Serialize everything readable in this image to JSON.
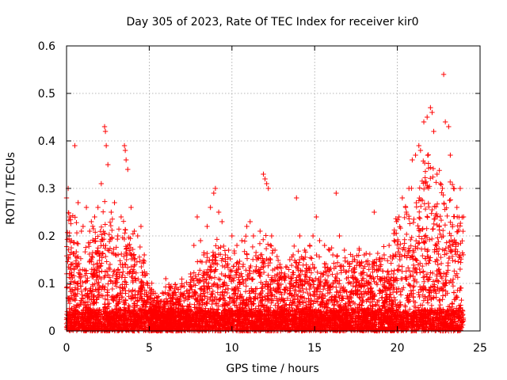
{
  "chart_data": {
    "type": "scatter",
    "title": "Day 305 of 2023, Rate Of TEC Index for receiver kir0",
    "xlabel": "GPS time / hours",
    "ylabel": "ROTI / TECUs",
    "xlim": [
      0,
      25
    ],
    "ylim": [
      0,
      0.6
    ],
    "x_ticks": [
      0,
      5,
      10,
      15,
      20,
      25
    ],
    "y_ticks": [
      0,
      0.1,
      0.2,
      0.3,
      0.4,
      0.5,
      0.6
    ],
    "x_tick_labels": [
      "0",
      "5",
      "10",
      "15",
      "20",
      "25"
    ],
    "y_tick_labels": [
      "0",
      "0.1",
      "0.2",
      "0.3",
      "0.4",
      "0.5",
      "0.6"
    ],
    "grid": true,
    "marker": "plus",
    "colors": {
      "series": "#ff0000",
      "grid": "#a0a0a0",
      "axes": "#000000"
    },
    "series": [
      {
        "points": [
          [
            0.0,
            0.28
          ],
          [
            0.1,
            0.3
          ],
          [
            0.2,
            0.24
          ],
          [
            0.3,
            0.19
          ],
          [
            0.5,
            0.39
          ],
          [
            0.7,
            0.27
          ],
          [
            0.9,
            0.21
          ],
          [
            1.0,
            0.22
          ],
          [
            1.2,
            0.26
          ],
          [
            1.4,
            0.21
          ],
          [
            1.5,
            0.23
          ],
          [
            1.7,
            0.24
          ],
          [
            1.9,
            0.26
          ],
          [
            2.1,
            0.31
          ],
          [
            2.3,
            0.43
          ],
          [
            2.35,
            0.42
          ],
          [
            2.4,
            0.39
          ],
          [
            2.5,
            0.35
          ],
          [
            2.7,
            0.25
          ],
          [
            2.9,
            0.27
          ],
          [
            3.1,
            0.2
          ],
          [
            3.3,
            0.24
          ],
          [
            3.5,
            0.39
          ],
          [
            3.55,
            0.38
          ],
          [
            3.6,
            0.36
          ],
          [
            3.7,
            0.34
          ],
          [
            3.9,
            0.26
          ],
          [
            4.1,
            0.21
          ],
          [
            4.3,
            0.2
          ],
          [
            4.5,
            0.22
          ],
          [
            4.7,
            0.16
          ],
          [
            4.9,
            0.1
          ],
          [
            5.1,
            0.06
          ],
          [
            5.3,
            0.05
          ],
          [
            5.5,
            0.07
          ],
          [
            5.8,
            0.08
          ],
          [
            6.0,
            0.11
          ],
          [
            6.3,
            0.09
          ],
          [
            6.6,
            0.06
          ],
          [
            6.9,
            0.08
          ],
          [
            7.2,
            0.07
          ],
          [
            7.5,
            0.12
          ],
          [
            7.7,
            0.18
          ],
          [
            7.9,
            0.24
          ],
          [
            8.1,
            0.19
          ],
          [
            8.3,
            0.16
          ],
          [
            8.5,
            0.22
          ],
          [
            8.7,
            0.26
          ],
          [
            8.9,
            0.29
          ],
          [
            9.0,
            0.3
          ],
          [
            9.2,
            0.25
          ],
          [
            9.4,
            0.23
          ],
          [
            9.6,
            0.16
          ],
          [
            9.8,
            0.17
          ],
          [
            10.0,
            0.2
          ],
          [
            10.3,
            0.18
          ],
          [
            10.6,
            0.19
          ],
          [
            10.9,
            0.22
          ],
          [
            11.1,
            0.23
          ],
          [
            11.3,
            0.2
          ],
          [
            11.5,
            0.15
          ],
          [
            11.7,
            0.21
          ],
          [
            11.9,
            0.33
          ],
          [
            12.0,
            0.32
          ],
          [
            12.1,
            0.31
          ],
          [
            12.2,
            0.3
          ],
          [
            12.4,
            0.2
          ],
          [
            12.6,
            0.17
          ],
          [
            12.9,
            0.14
          ],
          [
            13.2,
            0.12
          ],
          [
            13.5,
            0.15
          ],
          [
            13.7,
            0.16
          ],
          [
            13.9,
            0.28
          ],
          [
            14.1,
            0.2
          ],
          [
            14.4,
            0.17
          ],
          [
            14.7,
            0.18
          ],
          [
            14.9,
            0.2
          ],
          [
            15.1,
            0.24
          ],
          [
            15.3,
            0.19
          ],
          [
            15.6,
            0.18
          ],
          [
            15.9,
            0.17
          ],
          [
            16.1,
            0.16
          ],
          [
            16.3,
            0.29
          ],
          [
            16.5,
            0.2
          ],
          [
            16.8,
            0.17
          ],
          [
            17.1,
            0.14
          ],
          [
            17.4,
            0.15
          ],
          [
            17.7,
            0.17
          ],
          [
            18.0,
            0.16
          ],
          [
            18.3,
            0.14
          ],
          [
            18.6,
            0.25
          ],
          [
            18.9,
            0.15
          ],
          [
            19.2,
            0.16
          ],
          [
            19.5,
            0.18
          ],
          [
            19.8,
            0.19
          ],
          [
            20.1,
            0.24
          ],
          [
            20.3,
            0.28
          ],
          [
            20.5,
            0.26
          ],
          [
            20.7,
            0.3
          ],
          [
            20.9,
            0.36
          ],
          [
            21.1,
            0.37
          ],
          [
            21.3,
            0.39
          ],
          [
            21.4,
            0.38
          ],
          [
            21.6,
            0.44
          ],
          [
            21.8,
            0.45
          ],
          [
            22.0,
            0.47
          ],
          [
            22.1,
            0.46
          ],
          [
            22.2,
            0.42
          ],
          [
            22.4,
            0.33
          ],
          [
            22.6,
            0.31
          ],
          [
            22.8,
            0.54
          ],
          [
            22.9,
            0.44
          ],
          [
            23.1,
            0.43
          ],
          [
            23.2,
            0.37
          ],
          [
            23.4,
            0.3
          ],
          [
            23.6,
            0.26
          ],
          [
            23.8,
            0.3
          ],
          [
            24.0,
            0.24
          ]
        ]
      }
    ],
    "noise_envelope": {
      "x": [
        0,
        0.5,
        1,
        1.5,
        2,
        2.5,
        3,
        3.5,
        4,
        4.5,
        5,
        5.5,
        6,
        6.5,
        7,
        7.5,
        8,
        8.5,
        9,
        9.5,
        10,
        10.5,
        11,
        11.5,
        12,
        12.5,
        13,
        13.5,
        14,
        14.5,
        15,
        15.5,
        16,
        16.5,
        17,
        17.5,
        18,
        18.5,
        19,
        19.5,
        20,
        20.5,
        21,
        21.5,
        22,
        22.5,
        23,
        23.5,
        24
      ],
      "y": [
        0.18,
        0.16,
        0.12,
        0.14,
        0.17,
        0.18,
        0.15,
        0.17,
        0.15,
        0.12,
        0.08,
        0.05,
        0.06,
        0.07,
        0.07,
        0.08,
        0.1,
        0.12,
        0.15,
        0.12,
        0.11,
        0.12,
        0.13,
        0.12,
        0.14,
        0.12,
        0.1,
        0.11,
        0.12,
        0.12,
        0.12,
        0.11,
        0.12,
        0.11,
        0.11,
        0.12,
        0.11,
        0.12,
        0.12,
        0.13,
        0.16,
        0.18,
        0.21,
        0.24,
        0.25,
        0.23,
        0.22,
        0.19,
        0.16
      ]
    }
  }
}
